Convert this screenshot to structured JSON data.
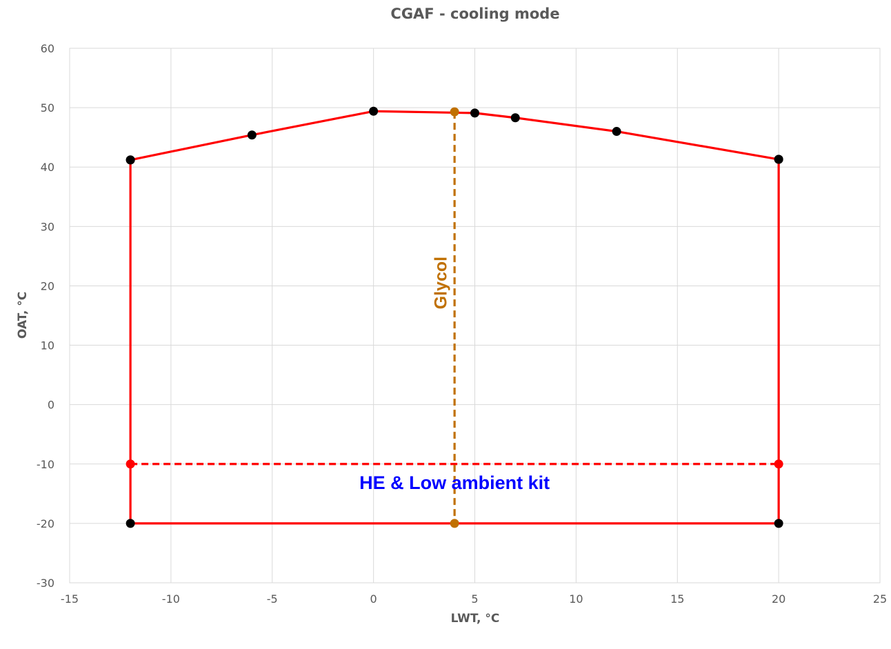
{
  "chart_data": {
    "type": "line",
    "title": "CGAF - cooling mode",
    "xlabel": "LWT, °C",
    "ylabel": "OAT, °C",
    "xlim": [
      -15,
      25
    ],
    "ylim": [
      -30,
      60
    ],
    "xticks": [
      -15,
      -10,
      -5,
      0,
      5,
      10,
      15,
      20,
      25
    ],
    "yticks": [
      -30,
      -20,
      -10,
      0,
      10,
      20,
      30,
      40,
      50,
      60
    ],
    "grid": true,
    "legend": "none",
    "series": [
      {
        "color": "#ff0000",
        "style": "solid",
        "marker_color": "#000000",
        "x": [
          -12,
          -6,
          0,
          5,
          7,
          12,
          20
        ],
        "y": [
          41.2,
          45.4,
          49.4,
          49.1,
          48.3,
          46.0,
          41.3
        ]
      },
      {
        "color": "#ff0000",
        "style": "solid",
        "marker_color": "#000000",
        "x": [
          -12,
          -12,
          20,
          20
        ],
        "y": [
          41.2,
          -20,
          -20,
          41.3
        ]
      },
      {
        "color": "#ff0000",
        "style": "dashed",
        "marker_color": "#ff0000",
        "x": [
          -12,
          20
        ],
        "y": [
          -10,
          -10
        ]
      },
      {
        "color": "#c07000",
        "style": "dashed",
        "marker_color": "#c07000",
        "x": [
          4,
          4
        ],
        "y": [
          49.3,
          -20
        ]
      }
    ],
    "annotations": [
      {
        "text": "HE & Low ambient kit",
        "x": 4,
        "y": -14.2,
        "color": "#0000ff"
      },
      {
        "text": "Glycol",
        "x": 3.6,
        "y": 20.5,
        "color": "#c07000",
        "rotation": -90
      }
    ],
    "colors": {
      "title": "#595959",
      "axis_title": "#595959",
      "grid": "#d9d9d9"
    }
  }
}
